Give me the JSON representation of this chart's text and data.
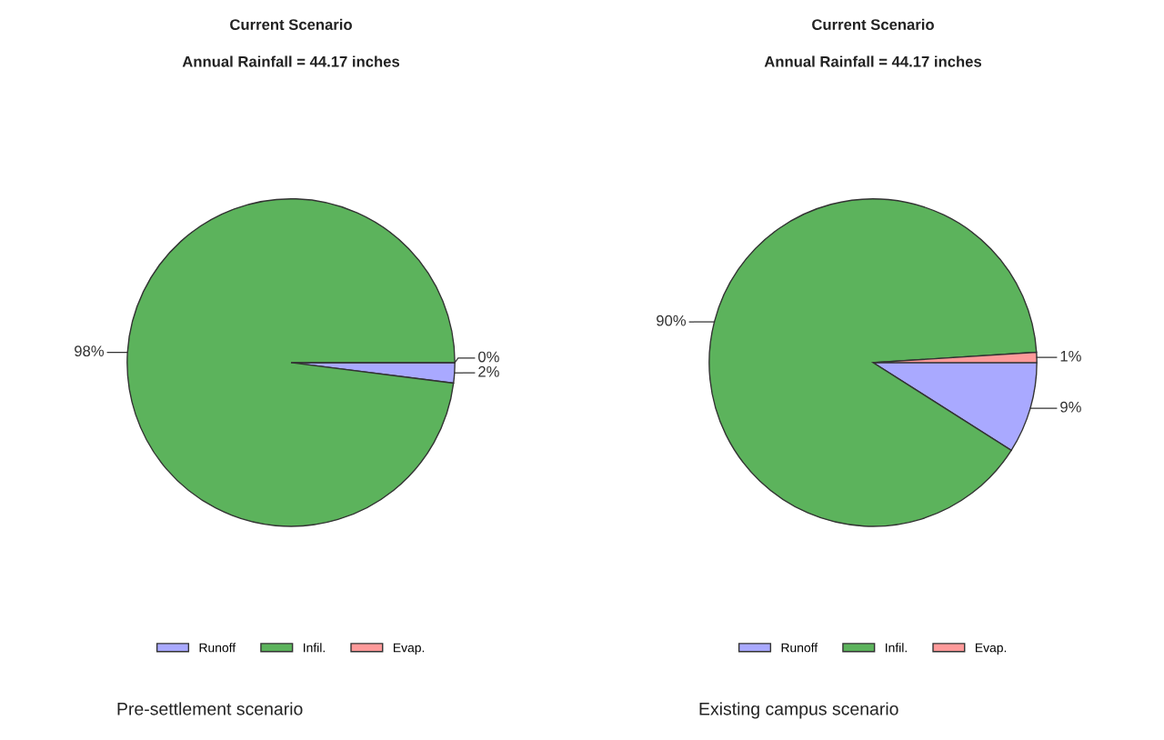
{
  "chart_data": [
    {
      "type": "pie",
      "title": "Current Scenario",
      "subtitle": "Annual Rainfall = 44.17 inches",
      "categories": [
        "Runoff",
        "Infil.",
        "Evap."
      ],
      "values": [
        2,
        98,
        0
      ],
      "value_labels": [
        "2%",
        "98%",
        "0%"
      ],
      "colors": [
        "#a9a9ff",
        "#5cb35c",
        "#ff9a9a"
      ],
      "legend": "bottom",
      "annotations": [
        "Pre-settlement scenario"
      ]
    },
    {
      "type": "pie",
      "title": "Current Scenario",
      "subtitle": "Annual Rainfall = 44.17 inches",
      "categories": [
        "Runoff",
        "Infil.",
        "Evap."
      ],
      "values": [
        9,
        90,
        1
      ],
      "value_labels": [
        "9%",
        "90%",
        "1%"
      ],
      "colors": [
        "#a9a9ff",
        "#5cb35c",
        "#ff9a9a"
      ],
      "legend": "bottom",
      "annotations": [
        "Existing campus scenario"
      ]
    }
  ]
}
